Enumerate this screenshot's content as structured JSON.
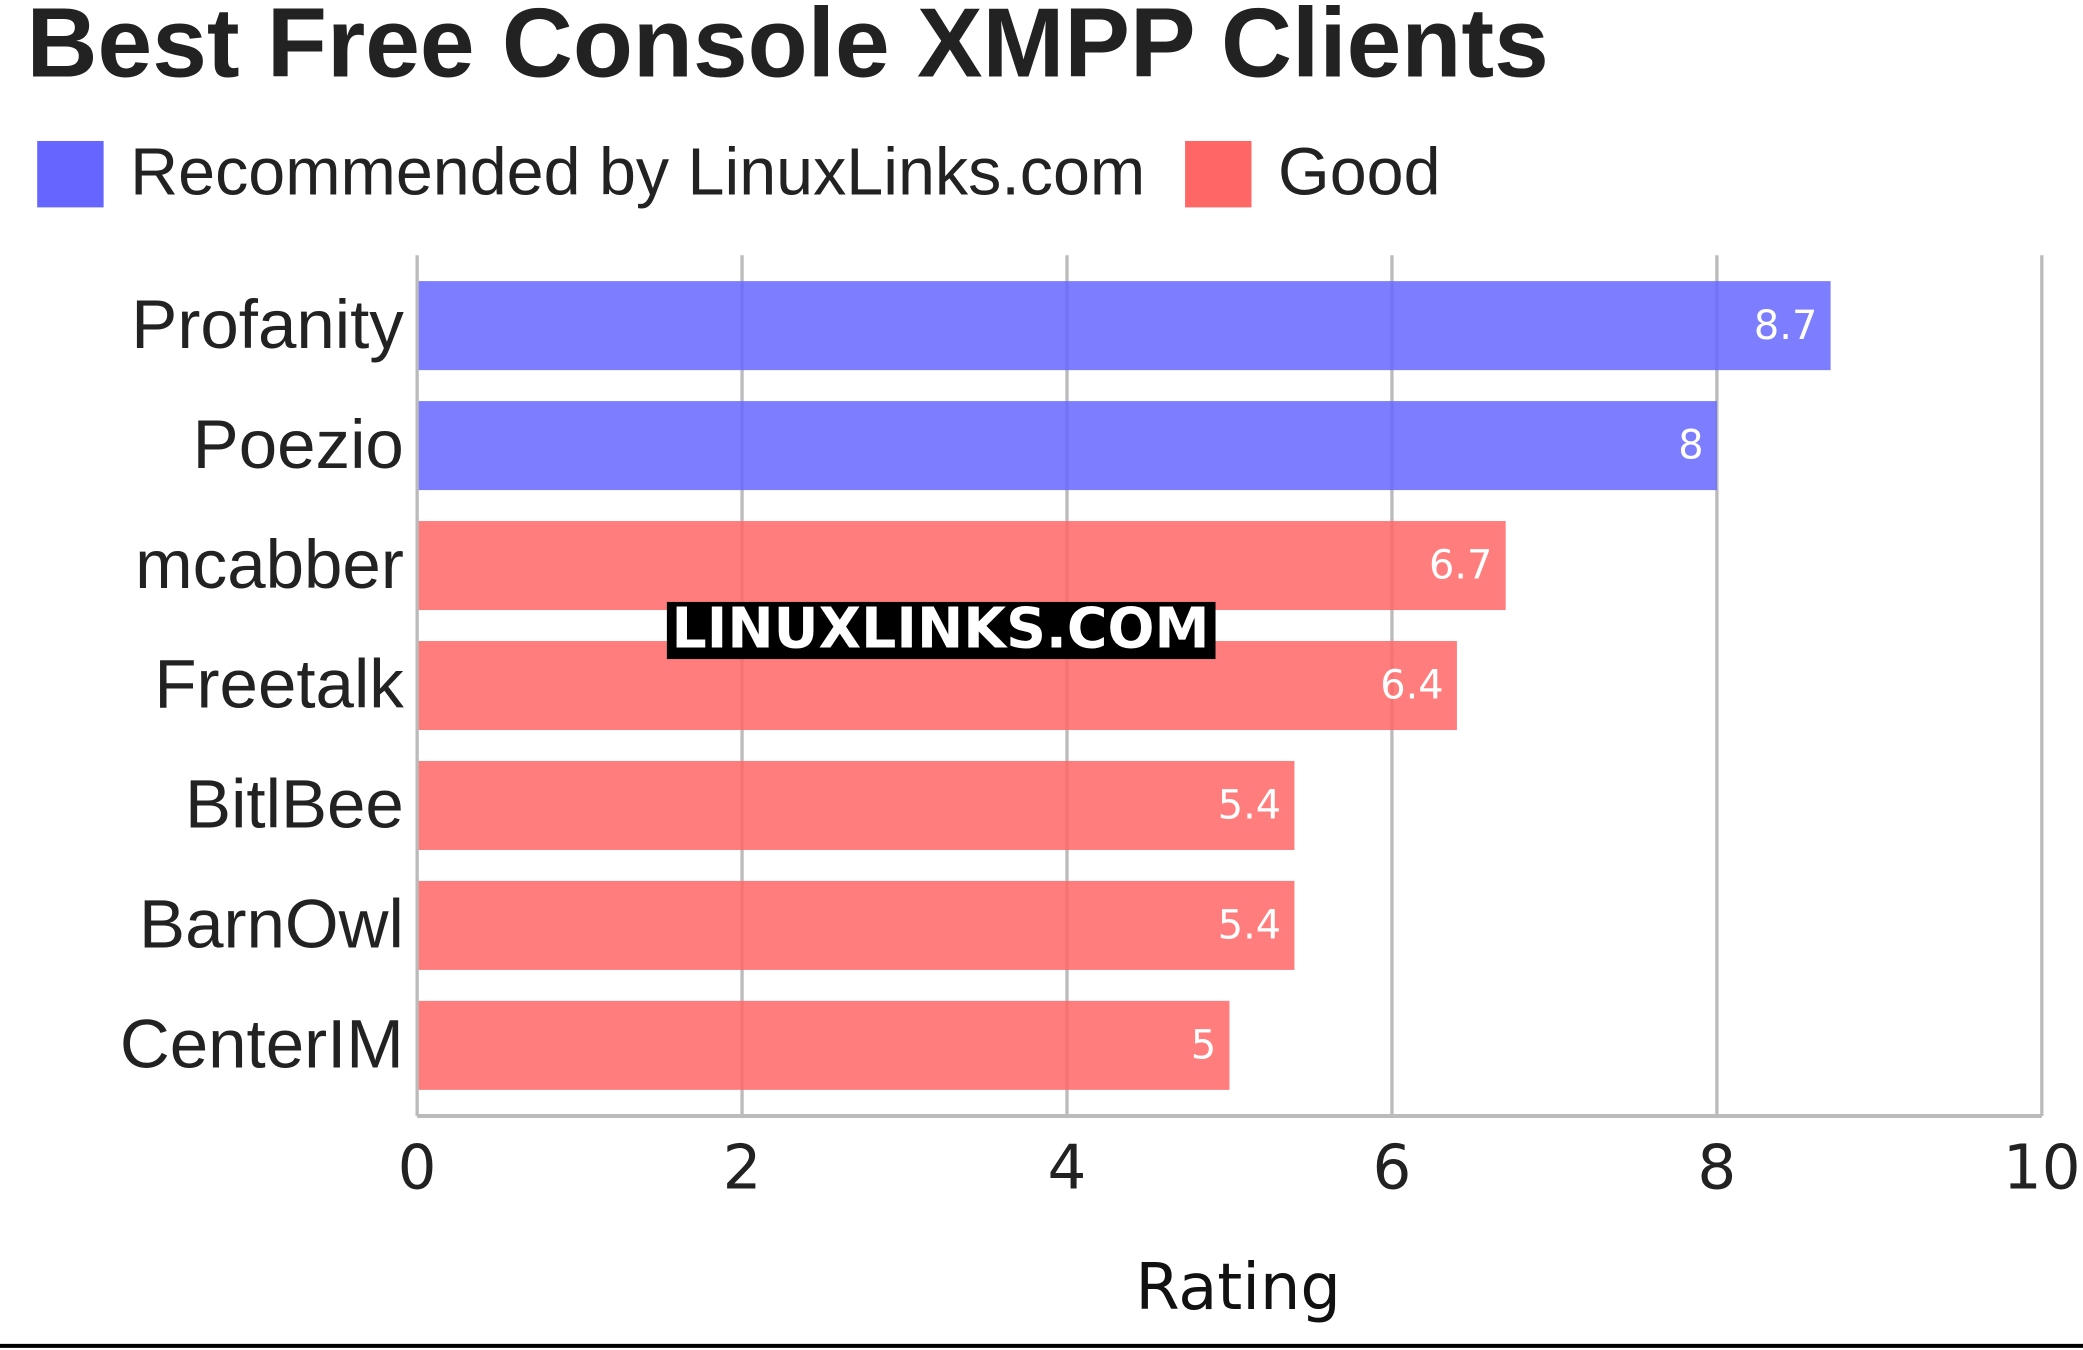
{
  "chart_data": {
    "type": "hbar",
    "title": "Best Free Console XMPP Clients",
    "categories": [
      "Profanity",
      "Poezio",
      "mcabber",
      "Freetalk",
      "BitlBee",
      "BarnOwl",
      "CenterIM"
    ],
    "series": [
      {
        "name": "Recommended by LinuxLinks.com",
        "color": "#6666ff",
        "values": [
          8.7,
          8,
          null,
          null,
          null,
          null,
          null
        ]
      },
      {
        "name": "Good",
        "color": "#ff6666",
        "values": [
          null,
          null,
          6.7,
          6.4,
          5.4,
          5.4,
          5
        ]
      }
    ],
    "xlim": [
      0,
      10
    ],
    "xticks": [
      0,
      2,
      4,
      6,
      8,
      10
    ],
    "grid": true,
    "x_label": "Rating",
    "watermark": "LINUXLINKS.COM"
  }
}
